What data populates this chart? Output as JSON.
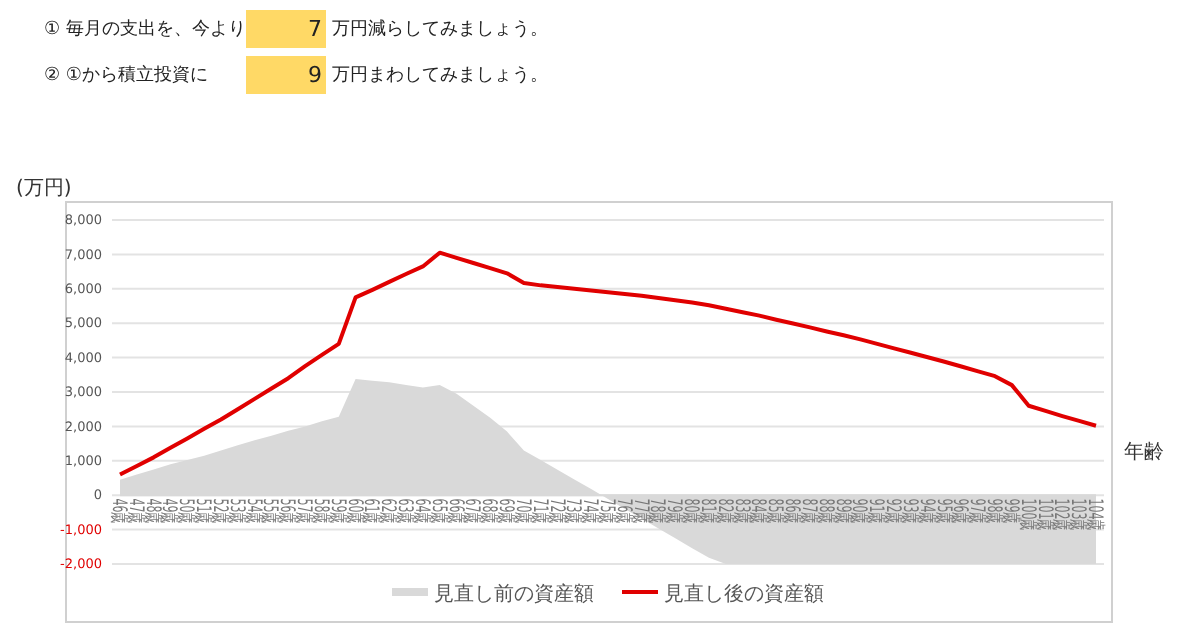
{
  "chart_data": {
    "type": "line",
    "ylabel": "(万円)",
    "xlabel": "年齢",
    "annotations": [
      "① 毎月の支出を、今より",
      "7",
      "万円減らしてみましょう。",
      "② ①から積立投資に",
      "9",
      "万円まわしてみましょう。"
    ],
    "categories": [
      "46歳",
      "47歳",
      "48歳",
      "49歳",
      "50歳",
      "51歳",
      "52歳",
      "53歳",
      "54歳",
      "55歳",
      "56歳",
      "57歳",
      "58歳",
      "59歳",
      "60歳",
      "61歳",
      "62歳",
      "63歳",
      "64歳",
      "65歳",
      "66歳",
      "67歳",
      "68歳",
      "69歳",
      "70歳",
      "71歳",
      "72歳",
      "73歳",
      "74歳",
      "75歳",
      "76歳",
      "77歳",
      "78歳",
      "79歳",
      "80歳",
      "81歳",
      "82歳",
      "83歳",
      "84歳",
      "85歳",
      "86歳",
      "87歳",
      "88歳",
      "89歳",
      "90歳",
      "91歳",
      "92歳",
      "93歳",
      "94歳",
      "95歳",
      "96歳",
      "97歳",
      "98歳",
      "99歳",
      "100歳",
      "101歳",
      "102歳",
      "103歳",
      "104歳"
    ],
    "series": [
      {
        "name": "見直し前の資産額",
        "type": "area",
        "color": "#d9d9d9",
        "values": [
          450,
          600,
          750,
          900,
          1020,
          1150,
          1300,
          1450,
          1600,
          1730,
          1870,
          2000,
          2150,
          2280,
          3380,
          3330,
          3280,
          3200,
          3130,
          3200,
          2950,
          2600,
          2250,
          1850,
          1300,
          1020,
          740,
          460,
          180,
          -110,
          -400,
          -680,
          -970,
          -1250,
          -1540,
          -1820,
          -2000,
          -2000,
          -2000,
          -2000,
          -2000,
          -2000,
          -2000,
          -2000,
          -2000,
          -2000,
          -2000,
          -2000,
          -2000,
          -2000,
          -2000,
          -2000,
          -2000,
          -2000,
          -2000,
          -2000,
          -2000,
          -2000,
          -2000
        ]
      },
      {
        "name": "見直し後の資産額",
        "type": "line",
        "color": "#e00000",
        "values": [
          600,
          850,
          1100,
          1380,
          1650,
          1930,
          2200,
          2500,
          2800,
          3100,
          3400,
          3750,
          4080,
          4400,
          5750,
          5970,
          6200,
          6430,
          6650,
          7050,
          6900,
          6750,
          6600,
          6450,
          6170,
          6100,
          6050,
          6000,
          5950,
          5900,
          5850,
          5800,
          5730,
          5670,
          5600,
          5520,
          5420,
          5320,
          5220,
          5100,
          4990,
          4880,
          4760,
          4650,
          4530,
          4400,
          4270,
          4140,
          4010,
          3880,
          3740,
          3600,
          3460,
          3200,
          2600,
          2450,
          2300,
          2160,
          2020
        ]
      }
    ],
    "ylim": [
      -2000,
      8000
    ],
    "yticks": [
      {
        "value": -2000,
        "label": "-2,000"
      },
      {
        "value": -1000,
        "label": "-1,000"
      },
      0,
      {
        "value": 1000,
        "label": "1,000"
      },
      {
        "value": 2000,
        "label": "2,000"
      },
      {
        "value": 3000,
        "label": "3,000"
      },
      {
        "value": 4000,
        "label": "4,000"
      },
      {
        "value": 5000,
        "label": "5,000"
      },
      {
        "value": 6000,
        "label": "6,000"
      },
      {
        "value": 7000,
        "label": "7,000"
      },
      {
        "value": 8000,
        "label": "8,000"
      }
    ],
    "grid": "y",
    "legend": "bottom"
  }
}
